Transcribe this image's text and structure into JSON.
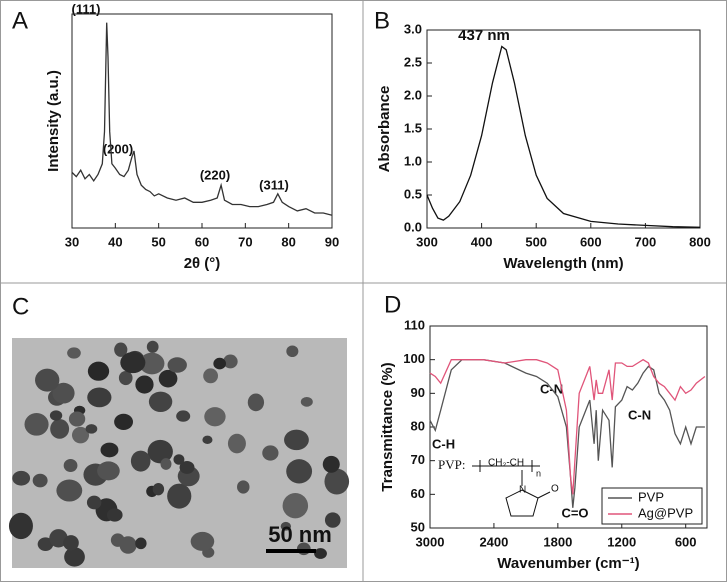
{
  "chart_data": [
    {
      "type": "line",
      "label": "A",
      "xlabel": "2θ (°)",
      "ylabel": "Intensity (a.u.)",
      "xlim": [
        30,
        90
      ],
      "xticks": [
        30,
        40,
        50,
        60,
        70,
        80,
        90
      ],
      "ylim": [
        0,
        100
      ],
      "annotations": [
        "(111)",
        "(200)",
        "(220)",
        "(311)"
      ],
      "x": [
        30,
        31,
        32,
        33,
        34,
        35,
        36,
        37,
        37.5,
        38,
        38.3,
        38.7,
        39.2,
        40,
        41,
        42,
        43,
        43.8,
        44.3,
        45,
        46,
        47,
        48,
        49,
        50,
        52,
        54,
        56,
        58,
        60,
        62,
        63.5,
        64.4,
        65.2,
        67,
        69,
        71,
        73,
        75,
        76.5,
        77.5,
        78.5,
        80,
        82,
        84,
        86,
        88,
        90
      ],
      "series": [
        {
          "color": "#333333",
          "values": [
            26,
            24,
            27,
            23,
            25,
            22,
            25,
            30,
            45,
            96,
            80,
            45,
            30,
            28,
            25,
            24,
            27,
            33,
            36,
            25,
            20,
            18,
            17,
            15,
            16,
            14,
            13,
            14,
            12,
            12,
            13,
            14,
            20,
            13,
            11,
            11,
            10,
            10,
            11,
            12,
            16,
            12,
            10,
            8,
            9,
            7,
            7,
            6
          ]
        }
      ]
    },
    {
      "type": "line",
      "label": "B",
      "xlabel": "Wavelength (nm)",
      "ylabel": "Absorbance",
      "xlim": [
        300,
        800
      ],
      "xticks": [
        300,
        400,
        500,
        600,
        700,
        800
      ],
      "ylim": [
        0,
        3
      ],
      "yticks": [
        {
          "value": 0,
          "label": "0.0"
        },
        0.5,
        {
          "value": 1,
          "label": "1.0"
        },
        1.5,
        {
          "value": 2,
          "label": "2.0"
        },
        2.5,
        {
          "value": 3,
          "label": "3.0"
        }
      ],
      "annotations": [
        "437 nm"
      ],
      "x": [
        300,
        310,
        320,
        330,
        340,
        360,
        380,
        400,
        420,
        437,
        445,
        460,
        480,
        500,
        520,
        550,
        600,
        650,
        700,
        750,
        800
      ],
      "series": [
        {
          "color": "#111111",
          "values": [
            0.5,
            0.3,
            0.15,
            0.12,
            0.18,
            0.4,
            0.8,
            1.4,
            2.2,
            2.75,
            2.7,
            2.2,
            1.4,
            0.8,
            0.45,
            0.22,
            0.1,
            0.06,
            0.04,
            0.02,
            0.01
          ]
        }
      ]
    },
    {
      "type": "line",
      "label": "D",
      "xlabel": "Wavenumber (cm⁻¹)",
      "ylabel": "Transmittance (%)",
      "xlim": [
        3000,
        400
      ],
      "xticks": [
        3000,
        2400,
        1800,
        1200,
        600
      ],
      "ylim": [
        50,
        110
      ],
      "yticks": [
        50,
        60,
        70,
        80,
        90,
        100,
        110
      ],
      "annotations": [
        "C-H",
        "C-N",
        "C-N",
        "C=O",
        "PVP:"
      ],
      "structure_labels": [
        "CH₂-CH",
        "n",
        "N",
        "O"
      ],
      "legend": "lower right",
      "x": [
        3000,
        2950,
        2900,
        2800,
        2700,
        2500,
        2300,
        2100,
        2000,
        1900,
        1800,
        1720,
        1680,
        1660,
        1640,
        1600,
        1500,
        1460,
        1440,
        1420,
        1380,
        1320,
        1290,
        1260,
        1200,
        1150,
        1100,
        1050,
        1000,
        950,
        900,
        850,
        800,
        750,
        700,
        650,
        600,
        550,
        500,
        420
      ],
      "series": [
        {
          "name": "PVP",
          "color": "#555555",
          "values": [
            82,
            79,
            85,
            97,
            100,
            100,
            99,
            96,
            95,
            93,
            89,
            80,
            65,
            56,
            62,
            80,
            88,
            75,
            85,
            70,
            85,
            82,
            68,
            86,
            88,
            92,
            91,
            93,
            96,
            98,
            97,
            90,
            88,
            85,
            78,
            75,
            80,
            75,
            80,
            80
          ]
        },
        {
          "name": "Ag@PVP",
          "color": "#e0557a",
          "values": [
            96,
            95,
            93,
            100,
            100,
            100,
            99,
            100,
            100,
            99,
            97,
            85,
            65,
            60,
            70,
            90,
            98,
            88,
            94,
            90,
            90,
            97,
            88,
            99,
            99,
            98,
            98,
            99,
            100,
            99,
            95,
            93,
            92,
            90,
            88,
            92,
            90,
            91,
            93,
            95
          ]
        }
      ]
    }
  ],
  "image_panel": {
    "label": "C",
    "scale_bar": "50 nm"
  }
}
